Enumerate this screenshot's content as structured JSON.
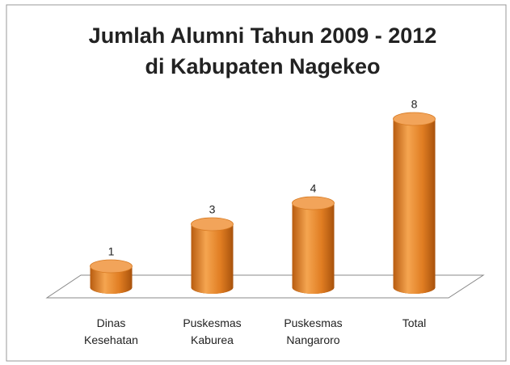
{
  "chart_data": {
    "type": "bar",
    "title": [
      "Jumlah Alumni Tahun 2009 - 2012",
      "di Kabupaten Nagekeo"
    ],
    "categories": [
      "Dinas Kesehatan",
      "Puskesmas Kaburea",
      "Puskesmas Nangaroro",
      "Total"
    ],
    "values": [
      1,
      3,
      4,
      8
    ],
    "color": "#e8872a"
  }
}
